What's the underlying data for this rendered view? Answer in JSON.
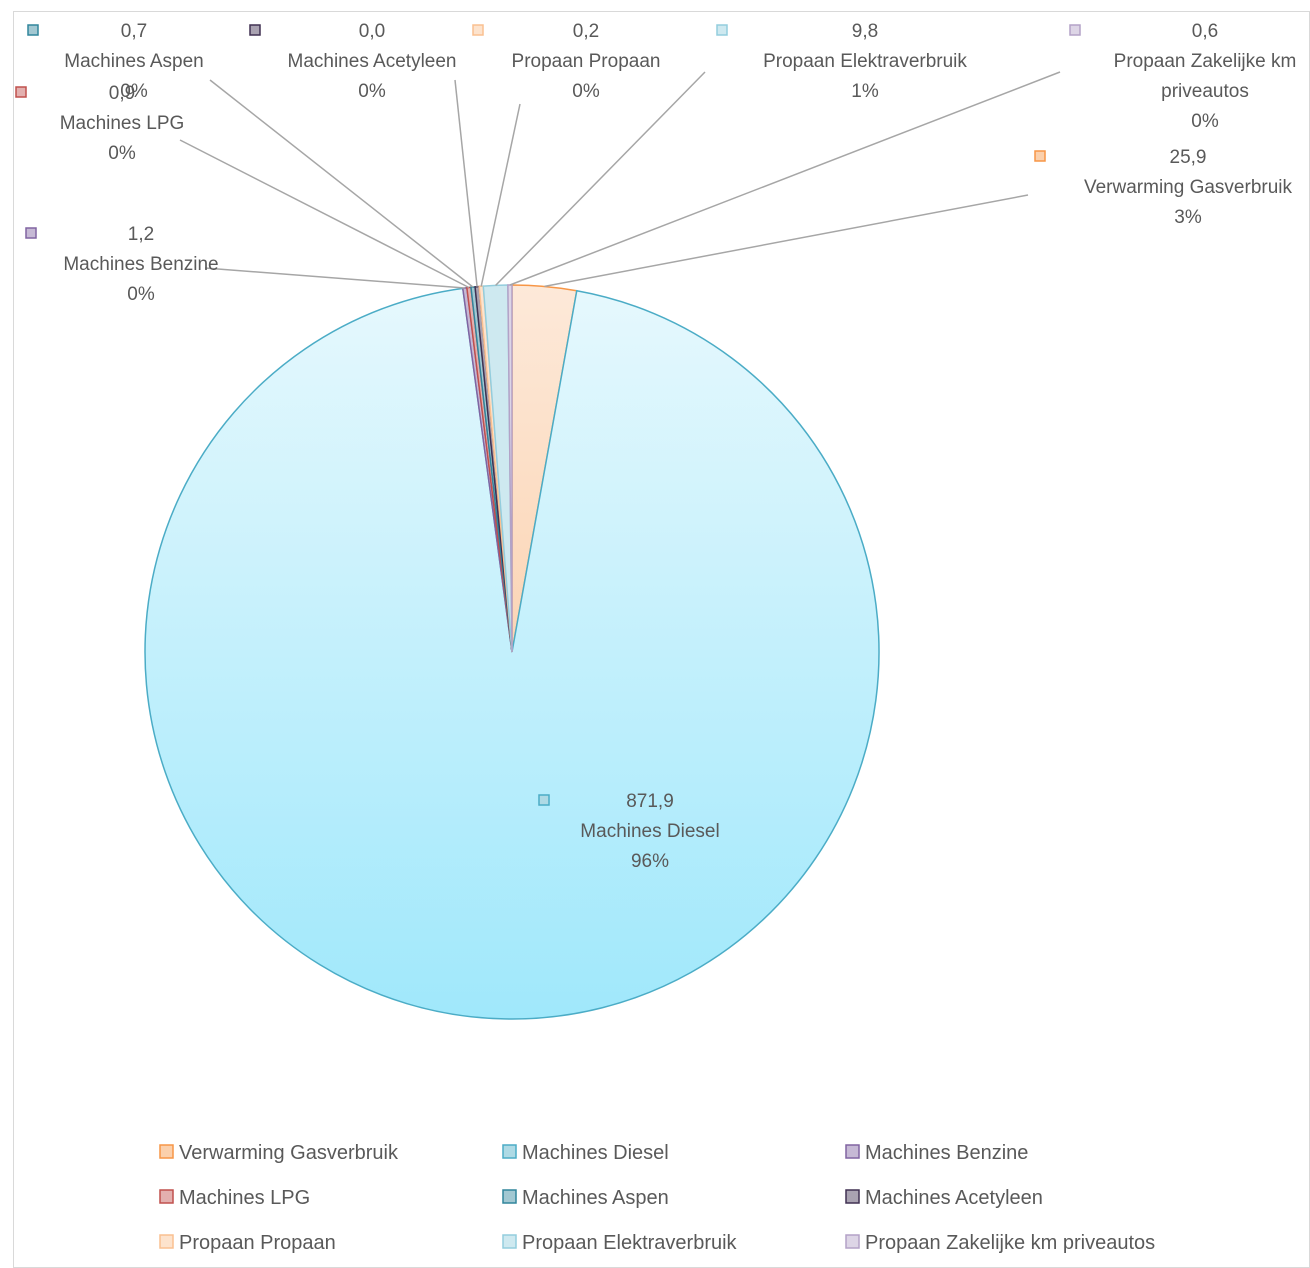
{
  "chart_data": {
    "type": "pie",
    "title": "",
    "legend_position": "bottom",
    "slices": [
      {
        "name": "Verwarming Gasverbruik",
        "value": 25.9,
        "value_label": "25,9",
        "percent_label": "3%",
        "color": "#f79646"
      },
      {
        "name": "Machines Diesel",
        "value": 871.9,
        "value_label": "871,9",
        "percent_label": "96%",
        "color": "#4bacc6"
      },
      {
        "name": "Machines Benzine",
        "value": 1.2,
        "value_label": "1,2",
        "percent_label": "0%",
        "color": "#8064a2"
      },
      {
        "name": "Machines LPG",
        "value": 0.9,
        "value_label": "0,9",
        "percent_label": "0%",
        "color": "#c0504d"
      },
      {
        "name": "Machines Aspen",
        "value": 0.7,
        "value_label": "0,7",
        "percent_label": "0%",
        "color": "#31859c"
      },
      {
        "name": "Machines Acetyleen",
        "value": 0.0,
        "value_label": "0,0",
        "percent_label": "0%",
        "color": "#403152"
      },
      {
        "name": "Propaan Propaan",
        "value": 0.2,
        "value_label": "0,2",
        "percent_label": "0%",
        "color": "#fac090"
      },
      {
        "name": "Propaan Elektraverbruik",
        "value": 9.8,
        "value_label": "9,8",
        "percent_label": "1%",
        "color": "#93cddd"
      },
      {
        "name": "Propaan Zakelijke km priveautos",
        "value": 0.6,
        "value_label": "0,6",
        "percent_label": "0%",
        "color": "#b3a2c7"
      }
    ]
  }
}
